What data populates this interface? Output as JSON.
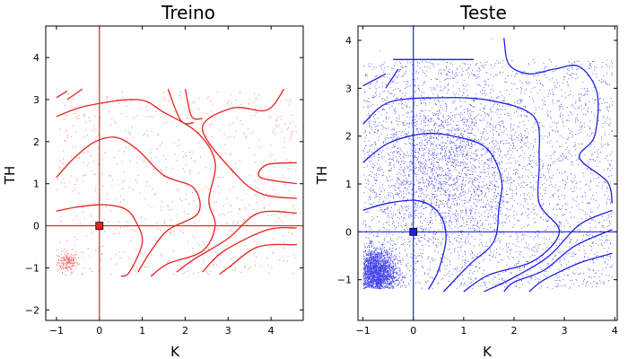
{
  "chart_data": [
    {
      "type": "scatter",
      "title": "Treino",
      "xlabel": "K",
      "ylabel": "TH",
      "xlim": [
        -1.25,
        4.75
      ],
      "ylim": [
        -2.25,
        4.75
      ],
      "xticks": [
        -1,
        0,
        1,
        2,
        3,
        4
      ],
      "yticks": [
        -2,
        -1,
        0,
        1,
        2,
        3,
        4
      ],
      "color": "#e8201f",
      "reference_point": [
        0,
        0
      ],
      "scatter_density": "sparse",
      "clusters": [
        {
          "center": [
            -0.75,
            -0.85
          ],
          "spread": [
            0.12,
            0.12
          ],
          "count": 220
        },
        {
          "region": [
            [
              -1.0,
              4.6
            ],
            [
              -1.15,
              3.2
            ]
          ],
          "count": 700
        }
      ],
      "contours": [
        [
          [
            -1.0,
            0.35
          ],
          [
            -0.5,
            0.45
          ],
          [
            0.1,
            0.5
          ],
          [
            0.6,
            0.4
          ],
          [
            0.85,
            0.1
          ],
          [
            1.0,
            -0.4
          ],
          [
            0.7,
            -1.1
          ],
          [
            0.5,
            -1.2
          ]
        ],
        [
          [
            -1.0,
            1.15
          ],
          [
            -0.6,
            1.6
          ],
          [
            -0.1,
            2.0
          ],
          [
            0.4,
            2.1
          ],
          [
            0.9,
            1.8
          ],
          [
            1.5,
            1.2
          ],
          [
            2.2,
            0.9
          ],
          [
            2.3,
            0.3
          ],
          [
            1.6,
            -0.1
          ],
          [
            1.2,
            -0.6
          ],
          [
            0.9,
            -1.1
          ]
        ],
        [
          [
            -1.0,
            2.6
          ],
          [
            -0.3,
            2.85
          ],
          [
            0.9,
            3.0
          ],
          [
            1.5,
            2.7
          ],
          [
            2.3,
            2.2
          ],
          [
            2.7,
            1.5
          ],
          [
            2.55,
            0.6
          ],
          [
            2.7,
            0.0
          ],
          [
            2.4,
            -0.6
          ],
          [
            1.6,
            -0.9
          ],
          [
            1.2,
            -1.2
          ]
        ],
        [
          [
            -1.0,
            3.05
          ],
          [
            -0.75,
            3.2
          ]
        ],
        [
          [
            -0.75,
            3.0
          ],
          [
            -0.4,
            3.25
          ]
        ],
        [
          [
            1.6,
            3.25
          ],
          [
            1.9,
            2.5
          ],
          [
            2.2,
            2.45
          ]
        ],
        [
          [
            2.0,
            3.25
          ],
          [
            2.15,
            2.6
          ],
          [
            2.4,
            2.55
          ]
        ],
        [
          [
            4.3,
            3.25
          ],
          [
            3.9,
            2.75
          ],
          [
            3.1,
            2.8
          ],
          [
            2.4,
            2.3
          ],
          [
            3.2,
            1.2
          ],
          [
            3.8,
            0.75
          ],
          [
            4.6,
            0.65
          ]
        ],
        [
          [
            4.6,
            1.5
          ],
          [
            3.9,
            1.45
          ],
          [
            3.75,
            1.15
          ],
          [
            4.6,
            1.0
          ]
        ],
        [
          [
            4.6,
            0.3
          ],
          [
            3.7,
            0.3
          ],
          [
            3.0,
            -0.3
          ],
          [
            2.2,
            -0.8
          ],
          [
            1.8,
            -1.1
          ]
        ],
        [
          [
            4.6,
            -0.05
          ],
          [
            3.9,
            -0.1
          ],
          [
            2.9,
            -0.6
          ],
          [
            2.4,
            -1.1
          ]
        ],
        [
          [
            4.6,
            -0.45
          ],
          [
            3.7,
            -0.5
          ],
          [
            3.0,
            -1.0
          ],
          [
            2.8,
            -1.15
          ]
        ]
      ]
    },
    {
      "type": "scatter",
      "title": "Teste",
      "xlabel": "K",
      "ylabel": "TH",
      "xlim": [
        -1.1,
        4.05
      ],
      "ylim": [
        -1.85,
        4.3
      ],
      "xticks": [
        -1,
        0,
        1,
        2,
        3,
        4
      ],
      "yticks": [
        -1,
        0,
        1,
        2,
        3,
        4
      ],
      "color": "#1f1fe6",
      "reference_point": [
        0,
        0
      ],
      "scatter_density": "dense",
      "clusters": [
        {
          "center": [
            -0.75,
            -0.85
          ],
          "spread": [
            0.2,
            0.25
          ],
          "count": 2600
        },
        {
          "region": [
            [
              -1.0,
              3.95
            ],
            [
              -1.2,
              3.6
            ]
          ],
          "count": 3200
        },
        {
          "center": [
            0.6,
            1.4
          ],
          "spread": [
            0.8,
            0.8
          ],
          "count": 1800
        }
      ],
      "contours": [
        [
          [
            -1.0,
            0.45
          ],
          [
            -0.5,
            0.6
          ],
          [
            0.1,
            0.65
          ],
          [
            0.5,
            0.4
          ],
          [
            0.65,
            -0.1
          ],
          [
            0.5,
            -0.8
          ],
          [
            0.3,
            -1.2
          ]
        ],
        [
          [
            -1.0,
            1.45
          ],
          [
            -0.5,
            1.85
          ],
          [
            0.2,
            2.05
          ],
          [
            0.8,
            2.0
          ],
          [
            1.45,
            1.75
          ],
          [
            1.75,
            1.1
          ],
          [
            1.7,
            0.5
          ],
          [
            1.6,
            -0.2
          ],
          [
            1.1,
            -0.7
          ],
          [
            0.6,
            -1.25
          ]
        ],
        [
          [
            -1.0,
            2.25
          ],
          [
            -0.5,
            2.7
          ],
          [
            0.4,
            2.8
          ],
          [
            1.5,
            2.75
          ],
          [
            2.4,
            2.4
          ],
          [
            2.5,
            1.5
          ],
          [
            2.5,
            0.6
          ],
          [
            2.9,
            0.0
          ],
          [
            2.4,
            -0.6
          ],
          [
            1.5,
            -0.9
          ],
          [
            1.0,
            -1.25
          ]
        ],
        [
          [
            -1.0,
            3.05
          ],
          [
            -0.55,
            3.3
          ]
        ],
        [
          [
            -0.55,
            3.0
          ],
          [
            -0.3,
            3.4
          ]
        ],
        [
          [
            -0.4,
            3.6
          ],
          [
            1.2,
            3.6
          ]
        ],
        [
          [
            1.8,
            4.05
          ],
          [
            1.9,
            3.5
          ],
          [
            2.3,
            3.3
          ],
          [
            2.8,
            3.4
          ],
          [
            3.3,
            3.45
          ],
          [
            3.65,
            2.9
          ],
          [
            3.6,
            2.0
          ],
          [
            3.3,
            1.55
          ],
          [
            3.85,
            1.05
          ],
          [
            3.95,
            0.6
          ]
        ],
        [
          [
            3.95,
            0.45
          ],
          [
            3.3,
            0.15
          ],
          [
            2.7,
            -0.5
          ],
          [
            2.0,
            -0.95
          ],
          [
            1.4,
            -1.25
          ]
        ],
        [
          [
            3.95,
            0.05
          ],
          [
            3.2,
            -0.3
          ],
          [
            2.6,
            -0.8
          ],
          [
            2.0,
            -1.05
          ],
          [
            1.8,
            -1.25
          ]
        ],
        [
          [
            3.95,
            -0.45
          ],
          [
            3.3,
            -0.65
          ],
          [
            2.6,
            -1.0
          ],
          [
            2.3,
            -1.25
          ]
        ]
      ]
    }
  ]
}
